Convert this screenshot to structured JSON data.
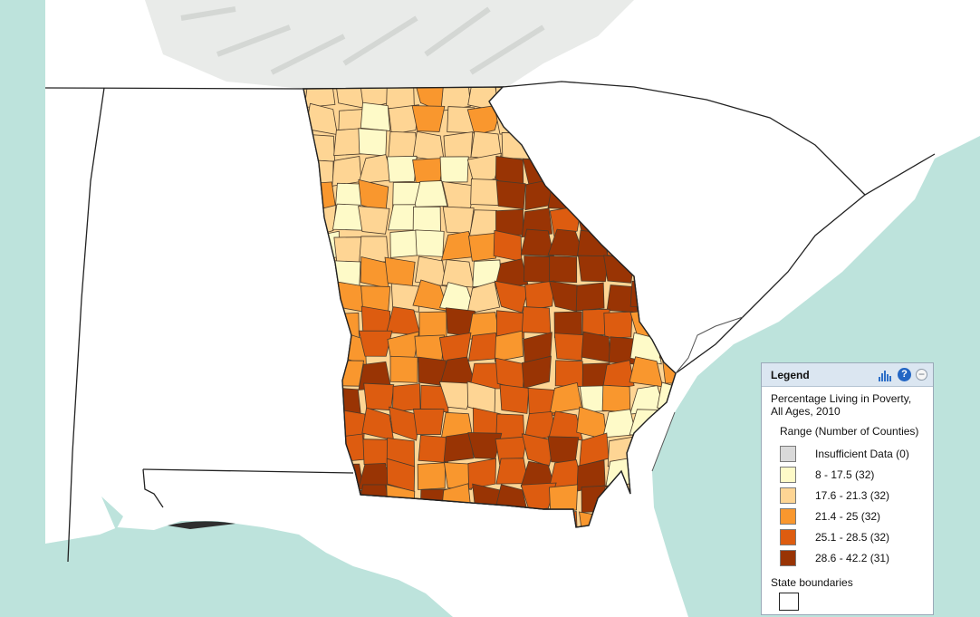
{
  "map": {
    "colors": {
      "water": "#bde3dc",
      "land": "#ffffff",
      "terrain": "#e6e8e6",
      "state_border": "#222222",
      "county_border": "#5a4a3a"
    },
    "classes": [
      {
        "label": "Insufficient Data (0)",
        "color": "#d9d9d9"
      },
      {
        "label": "8 - 17.5 (32)",
        "color": "#fefac8"
      },
      {
        "label": "17.6 - 21.3 (32)",
        "color": "#fed594"
      },
      {
        "label": "21.4 - 25 (32)",
        "color": "#f9972e"
      },
      {
        "label": "25.1 - 28.5 (32)",
        "color": "#dd5c10"
      },
      {
        "label": "28.6 - 42.2 (31)",
        "color": "#993404"
      }
    ]
  },
  "legend": {
    "title": "Legend",
    "layer_title": "Percentage Living in Poverty, All Ages, 2010",
    "range_header": "Range (Number of Counties)",
    "state_boundaries_label": "State boundaries",
    "icons": {
      "chart": "bar-chart-icon",
      "help": "help-icon",
      "minimize": "minimize-icon"
    },
    "help_glyph": "?",
    "minimize_glyph": "−"
  }
}
